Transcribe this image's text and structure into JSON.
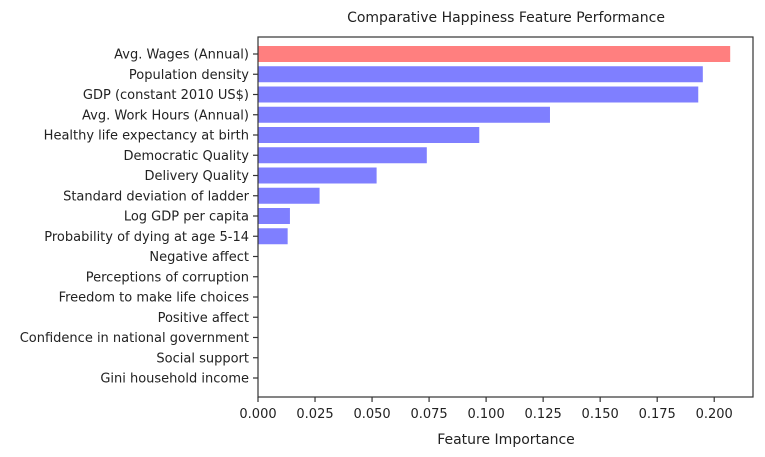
{
  "chart_data": {
    "type": "bar",
    "orientation": "horizontal",
    "title": "Comparative Happiness Feature Performance",
    "xlabel": "Feature Importance",
    "ylabel": "",
    "xlim": [
      0,
      0.217
    ],
    "xticks": [
      "0.000",
      "0.025",
      "0.050",
      "0.075",
      "0.100",
      "0.125",
      "0.150",
      "0.175",
      "0.200"
    ],
    "grid": false,
    "colors": {
      "highlight": "#ff7f7f",
      "default": "#7f7fff"
    },
    "categories": [
      "Avg. Wages (Annual)",
      "Population density",
      "GDP (constant 2010 US$)",
      "Avg. Work Hours (Annual)",
      "Healthy life expectancy at birth",
      "Democratic Quality",
      "Delivery Quality",
      "Standard deviation of ladder",
      "Log GDP per capita",
      "Probability of dying at age 5-14",
      "Negative affect",
      "Perceptions of corruption",
      "Freedom to make life choices",
      "Positive affect",
      "Confidence in national government",
      "Social support",
      "Gini household income"
    ],
    "values": [
      0.207,
      0.195,
      0.193,
      0.128,
      0.097,
      0.074,
      0.052,
      0.027,
      0.014,
      0.013,
      0,
      0,
      0,
      0,
      0,
      0,
      0
    ],
    "highlight_index": 0
  }
}
